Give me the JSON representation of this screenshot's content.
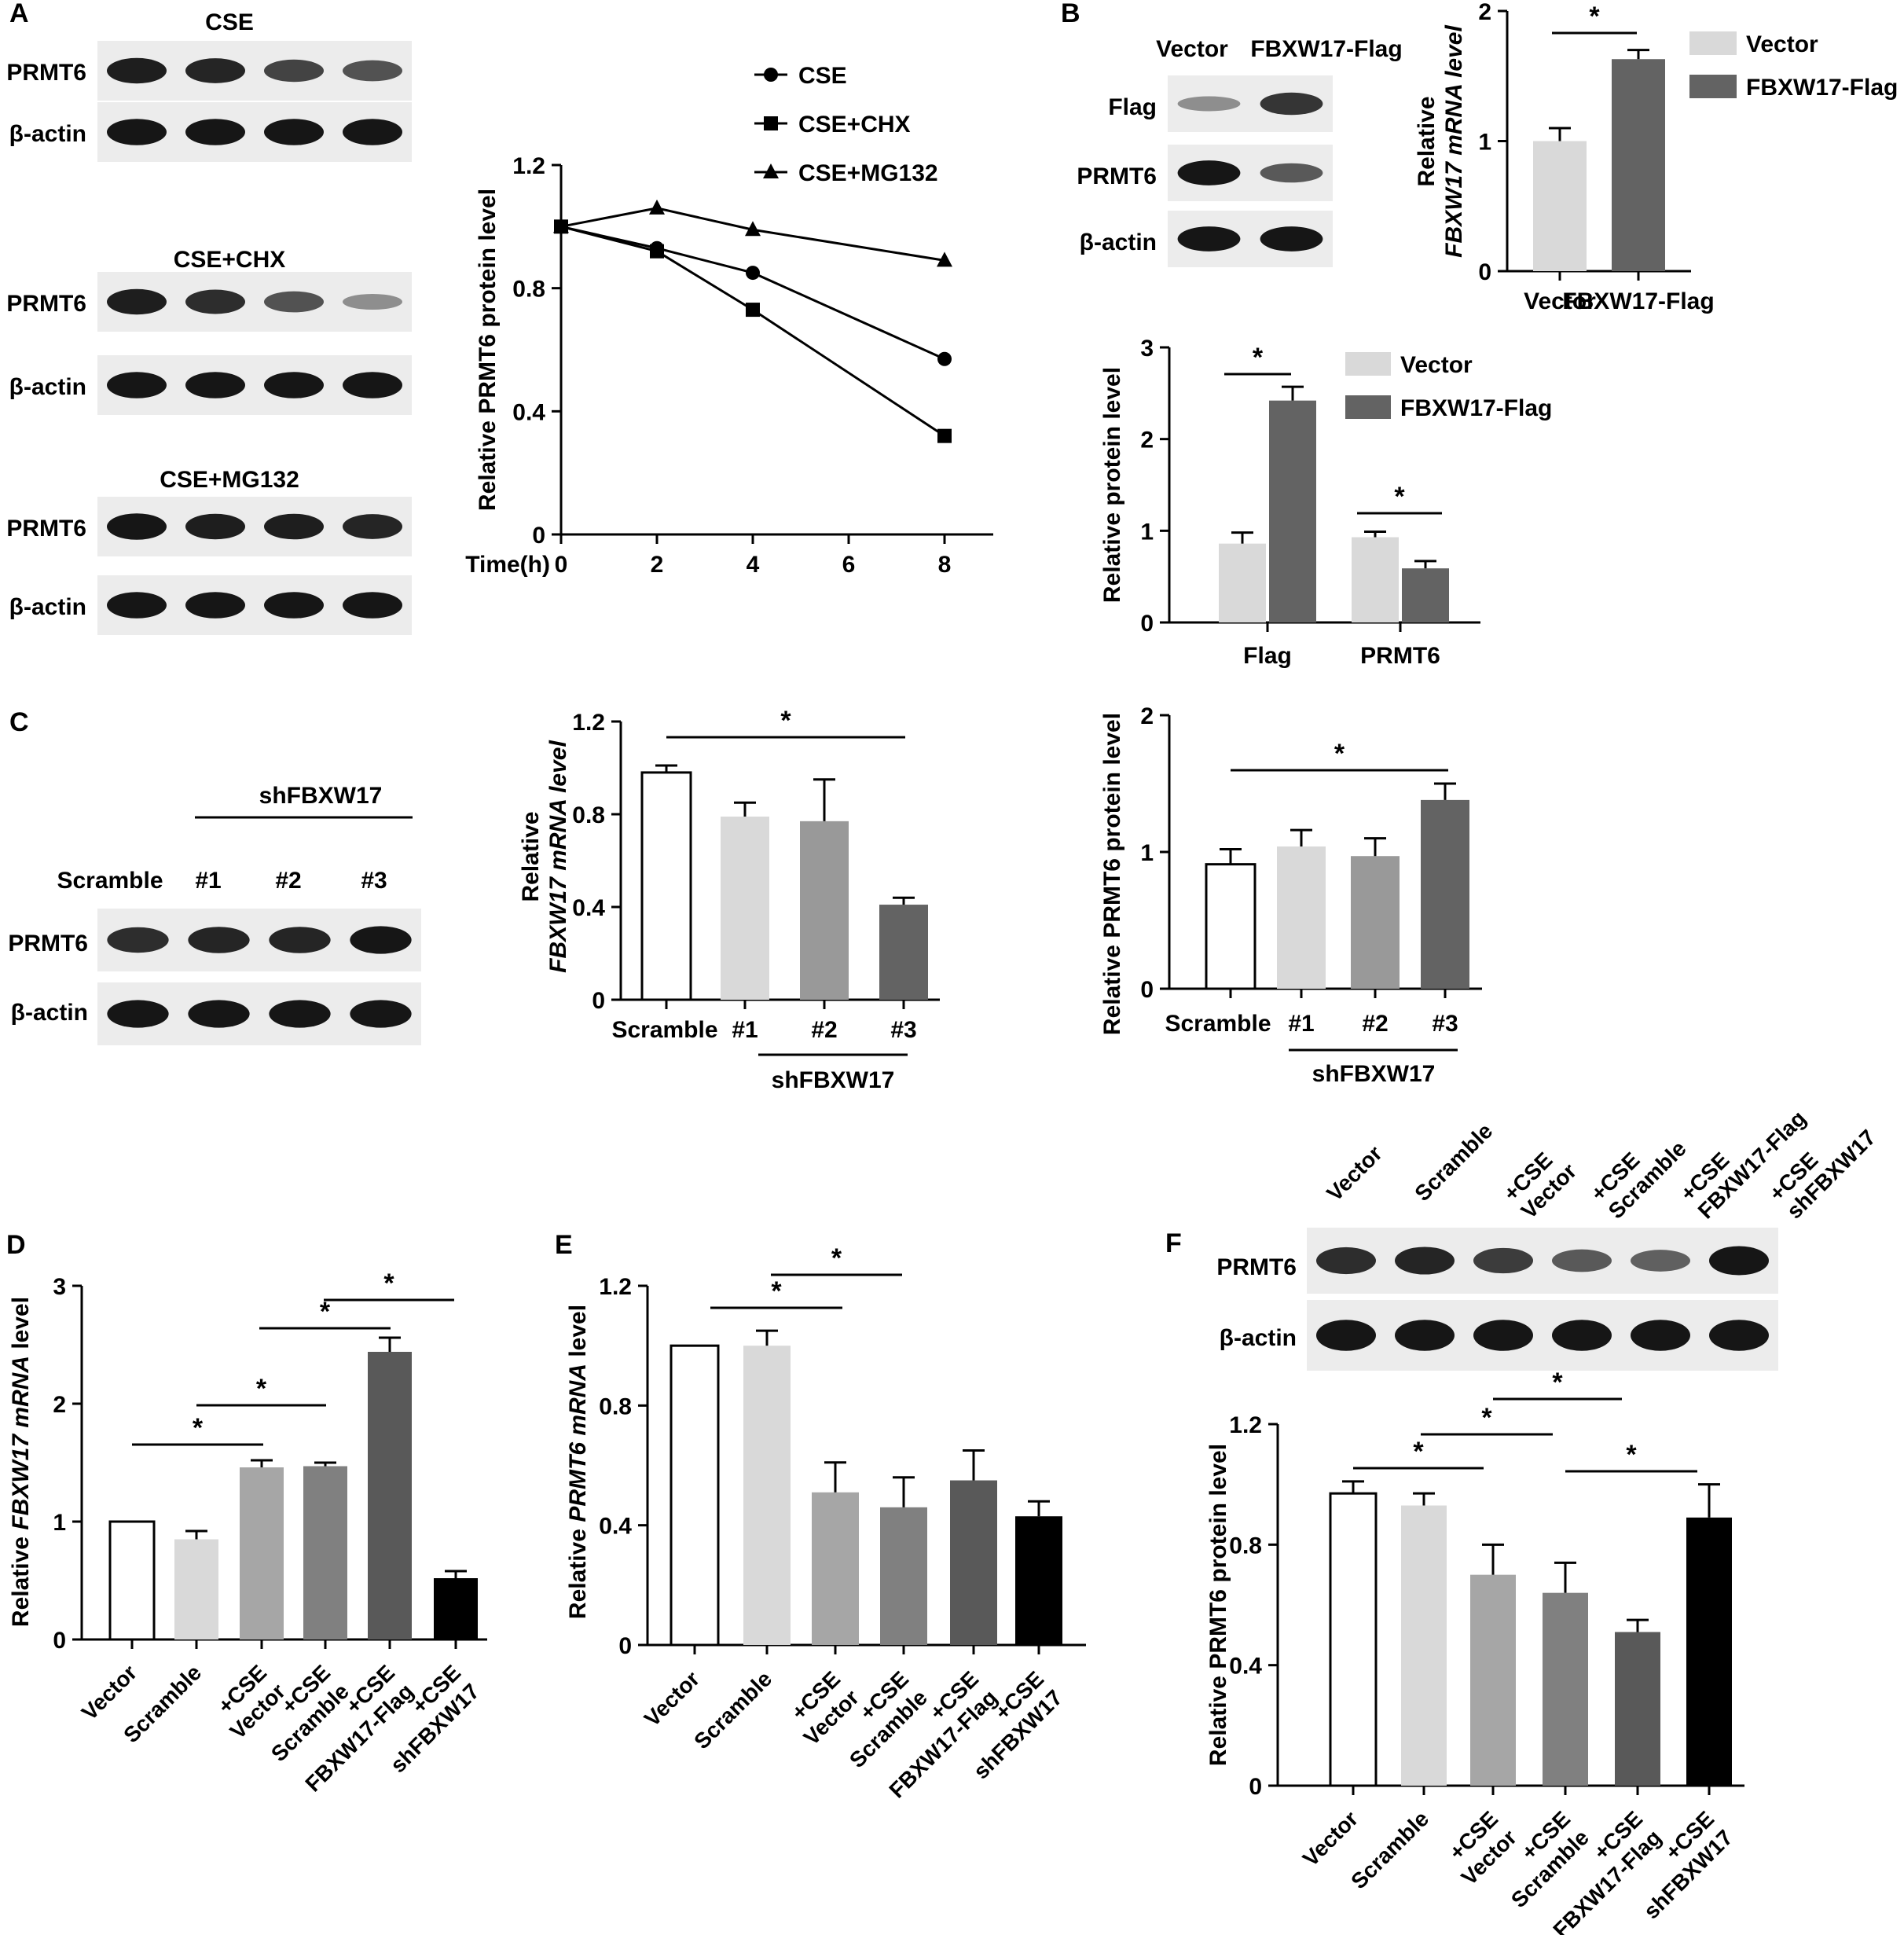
{
  "panels": {
    "A": {
      "letter": "A",
      "blots": [
        {
          "title": "CSE",
          "rows": [
            {
              "label": "PRMT6",
              "bands": [
                0.95,
                0.9,
                0.7,
                0.6
              ]
            },
            {
              "label": "β-actin",
              "bands": [
                1,
                1,
                1,
                1
              ]
            }
          ]
        },
        {
          "title": "CSE+CHX",
          "rows": [
            {
              "label": "PRMT6",
              "bands": [
                0.95,
                0.85,
                0.6,
                0.2
              ]
            },
            {
              "label": "β-actin",
              "bands": [
                1,
                1,
                1,
                1
              ]
            }
          ]
        },
        {
          "title": "CSE+MG132",
          "rows": [
            {
              "label": "PRMT6",
              "bands": [
                1,
                0.95,
                0.95,
                0.9
              ]
            },
            {
              "label": "β-actin",
              "bands": [
                1,
                1,
                1,
                1
              ]
            }
          ]
        }
      ],
      "chart_data": {
        "type": "line",
        "x": [
          0,
          2,
          4,
          8
        ],
        "xticks": [
          "0",
          "2",
          "4",
          "6",
          "8"
        ],
        "xlabel": "Time(h)",
        "ylabel": "Relative PRMT6 protein level",
        "ylim": [
          0,
          1.2
        ],
        "yticks": [
          "0",
          "0.4",
          "0.8",
          "1.2"
        ],
        "legend_position": "top-right",
        "series": [
          {
            "name": "CSE",
            "marker": "circle",
            "values": [
              1.0,
              0.93,
              0.85,
              0.57
            ]
          },
          {
            "name": "CSE+CHX",
            "marker": "square",
            "values": [
              1.0,
              0.92,
              0.73,
              0.32
            ]
          },
          {
            "name": "CSE+MG132",
            "marker": "triangle",
            "values": [
              1.0,
              1.06,
              0.99,
              0.89
            ]
          }
        ]
      }
    },
    "B": {
      "letter": "B",
      "blot": {
        "lanes": [
          "Vector",
          "FBXW17-Flag"
        ],
        "rows": [
          {
            "label": "Flag"
          },
          {
            "label": "PRMT6"
          },
          {
            "label": "β-actin"
          }
        ]
      },
      "chart_mrna": {
        "type": "bar",
        "categories": [
          "Vector",
          "FBXW17-Flag"
        ],
        "values": [
          1.0,
          1.63
        ],
        "errors": [
          0.1,
          0.07
        ],
        "colors": [
          "#d9d9d9",
          "#636363"
        ],
        "ylabel_line1": "Relative",
        "ylabel_line2": "FBXW17 mRNA level",
        "ylim": [
          0,
          2
        ],
        "yticks": [
          "0",
          "1",
          "2"
        ],
        "significance": "*",
        "legend": [
          "Vector",
          "FBXW17-Flag"
        ]
      },
      "chart_protein": {
        "type": "bar",
        "categories": [
          "Flag",
          "PRMT6"
        ],
        "series": [
          {
            "name": "Vector",
            "values": [
              0.86,
              0.93
            ],
            "errors": [
              0.12,
              0.06
            ],
            "color": "#d9d9d9"
          },
          {
            "name": "FBXW17-Flag",
            "values": [
              2.42,
              0.59
            ],
            "errors": [
              0.15,
              0.08
            ],
            "color": "#636363"
          }
        ],
        "ylabel": "Relative protein level",
        "ylim": [
          0,
          3
        ],
        "yticks": [
          "0",
          "1",
          "2",
          "3"
        ],
        "significance": [
          "*",
          "*"
        ]
      }
    },
    "C": {
      "letter": "C",
      "blot": {
        "group_label": "shFBXW17",
        "lanes": [
          "Scramble",
          "#1",
          "#2",
          "#3"
        ],
        "rows": [
          {
            "label": "PRMT6"
          },
          {
            "label": "β-actin"
          }
        ]
      },
      "chart_mrna": {
        "type": "bar",
        "categories": [
          "Scramble",
          "#1",
          "#2",
          "#3"
        ],
        "values": [
          0.98,
          0.79,
          0.77,
          0.41
        ],
        "errors": [
          0.03,
          0.06,
          0.18,
          0.03
        ],
        "colors": [
          "#ffffff",
          "#d9d9d9",
          "#999999",
          "#636363"
        ],
        "ylabel_line1": "Relative",
        "ylabel_line2": "FBXW17 mRNA level",
        "ylim": [
          0,
          1.2
        ],
        "yticks": [
          "0",
          "0.4",
          "0.8",
          "1.2"
        ],
        "group_label": "shFBXW17",
        "significance": "*"
      },
      "chart_protein": {
        "type": "bar",
        "categories": [
          "Scramble",
          "#1",
          "#2",
          "#3"
        ],
        "values": [
          0.91,
          1.04,
          0.97,
          1.38
        ],
        "errors": [
          0.11,
          0.12,
          0.13,
          0.12
        ],
        "colors": [
          "#ffffff",
          "#d9d9d9",
          "#999999",
          "#636363"
        ],
        "ylabel": "Relative PRMT6 protein level",
        "ylim": [
          0,
          2
        ],
        "yticks": [
          "0",
          "1",
          "2"
        ],
        "group_label": "shFBXW17",
        "significance": "*"
      }
    },
    "D": {
      "letter": "D",
      "chart_data": {
        "type": "bar",
        "categories": [
          [
            "Vector"
          ],
          [
            "Scramble"
          ],
          [
            "Vector",
            "+CSE"
          ],
          [
            "Scramble",
            "+CSE"
          ],
          [
            "FBXW17-Flag",
            "+CSE"
          ],
          [
            "shFBXW17",
            "+CSE"
          ]
        ],
        "values": [
          1.0,
          0.85,
          1.46,
          1.47,
          2.44,
          0.52
        ],
        "errors": [
          0.0,
          0.07,
          0.06,
          0.03,
          0.12,
          0.06
        ],
        "colors": [
          "#ffffff",
          "#d9d9d9",
          "#a6a6a6",
          "#808080",
          "#595959",
          "#000000"
        ],
        "ylabel_pre": "Relative ",
        "ylabel_italic": "FBXW17 mRNA",
        "ylabel_post": " level",
        "ylim": [
          0,
          3
        ],
        "yticks": [
          "0",
          "1",
          "2",
          "3"
        ],
        "significance": [
          "*",
          "*",
          "*",
          "*"
        ]
      }
    },
    "E": {
      "letter": "E",
      "chart_data": {
        "type": "bar",
        "categories": [
          [
            "Vector"
          ],
          [
            "Scramble"
          ],
          [
            "Vector",
            "+CSE"
          ],
          [
            "Scramble",
            "+CSE"
          ],
          [
            "FBXW17-Flag",
            "+CSE"
          ],
          [
            "shFBXW17",
            "+CSE"
          ]
        ],
        "values": [
          1.0,
          1.0,
          0.51,
          0.46,
          0.55,
          0.43
        ],
        "errors": [
          0.0,
          0.05,
          0.1,
          0.1,
          0.1,
          0.05
        ],
        "colors": [
          "#ffffff",
          "#d9d9d9",
          "#a6a6a6",
          "#808080",
          "#595959",
          "#000000"
        ],
        "ylabel_pre": "Relative ",
        "ylabel_italic": "PRMT6 mRNA",
        "ylabel_post": " level",
        "ylim": [
          0,
          1.2
        ],
        "yticks": [
          "0",
          "0.4",
          "0.8",
          "1.2"
        ],
        "significance": [
          "*",
          "*"
        ]
      }
    },
    "F": {
      "letter": "F",
      "blot": {
        "lanes": [
          [
            "Vector"
          ],
          [
            "Scramble"
          ],
          [
            "Vector",
            "+CSE"
          ],
          [
            "Scramble",
            "+CSE"
          ],
          [
            "FBXW17-Flag",
            "+CSE"
          ],
          [
            "shFBXW17",
            "+CSE"
          ]
        ],
        "rows": [
          {
            "label": "PRMT6"
          },
          {
            "label": "β-actin"
          }
        ]
      },
      "chart_data": {
        "type": "bar",
        "categories": [
          [
            "Vector"
          ],
          [
            "Scramble"
          ],
          [
            "Vector",
            "+CSE"
          ],
          [
            "Scramble",
            "+CSE"
          ],
          [
            "FBXW17-Flag",
            "+CSE"
          ],
          [
            "shFBXW17",
            "+CSE"
          ]
        ],
        "values": [
          0.97,
          0.93,
          0.7,
          0.64,
          0.51,
          0.89
        ],
        "errors": [
          0.04,
          0.04,
          0.1,
          0.1,
          0.04,
          0.11
        ],
        "colors": [
          "#ffffff",
          "#d9d9d9",
          "#a6a6a6",
          "#808080",
          "#595959",
          "#000000"
        ],
        "ylabel": "Relative PRMT6 protein level",
        "ylim": [
          0,
          1.2
        ],
        "yticks": [
          "0",
          "0.4",
          "0.8",
          "1.2"
        ],
        "significance": [
          "*",
          "*",
          "*",
          "*"
        ]
      }
    }
  }
}
